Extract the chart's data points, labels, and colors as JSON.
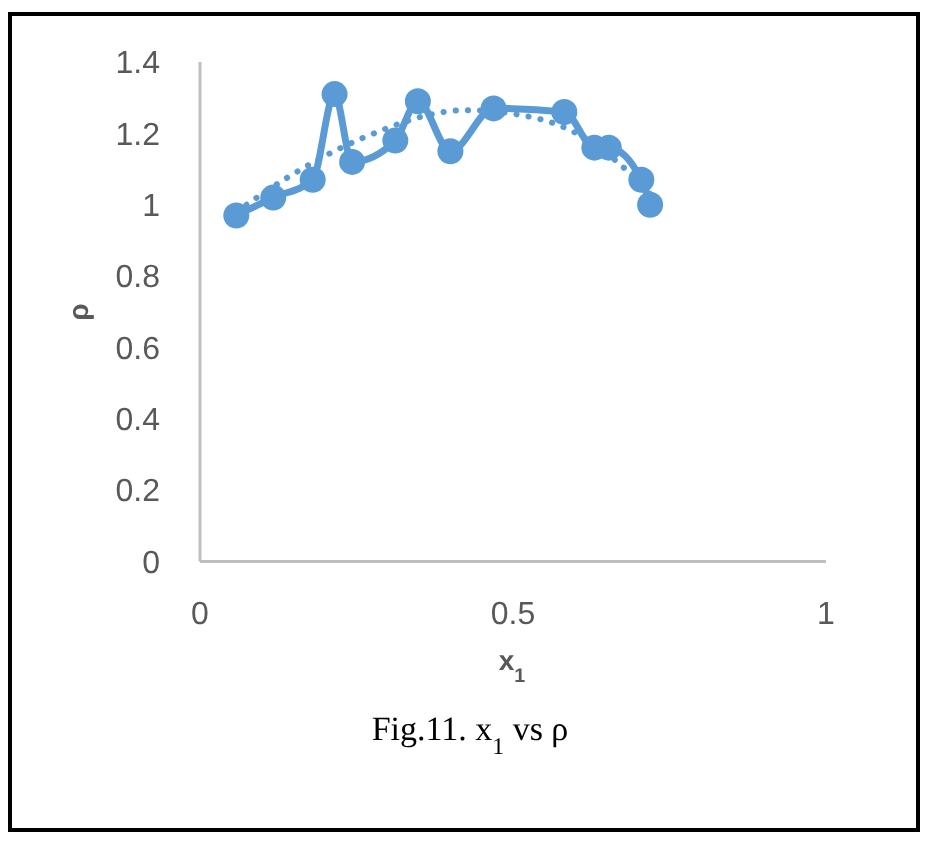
{
  "chart_data": {
    "type": "line",
    "xlabel": "x$_{1}$",
    "ylabel": "ρ",
    "annotations": [
      "Fig.11. x$_{1}$ vs ρ"
    ],
    "xlim": [
      0,
      1
    ],
    "xticks": [
      0,
      0.5,
      1
    ],
    "ylim": [
      0,
      1.4
    ],
    "yticks": [
      0,
      0.2,
      0.4,
      0.6,
      0.8,
      1,
      1.2,
      1.4
    ],
    "grid": false,
    "series": [
      {
        "color": "#5b9bd5",
        "marker": "circle",
        "line_style": "solid",
        "x": [
          0.058,
          0.117,
          0.18,
          0.215,
          0.243,
          0.312,
          0.348,
          0.4,
          0.469,
          0.582,
          0.63,
          0.653,
          0.705,
          0.719
        ],
        "values": [
          0.97,
          1.02,
          1.07,
          1.31,
          1.12,
          1.18,
          1.29,
          1.15,
          1.27,
          1.26,
          1.16,
          1.16,
          1.07,
          1.0
        ]
      },
      {
        "color": "#5b9bd5",
        "marker": "none",
        "line_style": "dotted",
        "x": [
          0.058,
          0.134,
          0.264,
          0.425,
          0.543,
          0.67,
          0.719
        ],
        "values": [
          0.98,
          1.07,
          1.19,
          1.265,
          1.24,
          1.115,
          1.03
        ]
      }
    ]
  }
}
